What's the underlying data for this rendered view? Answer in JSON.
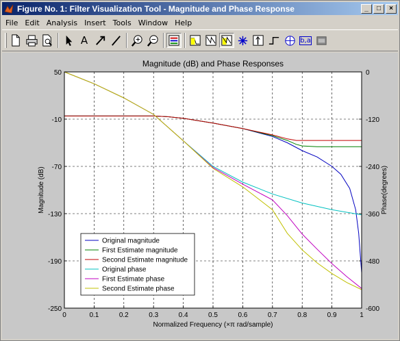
{
  "window": {
    "title": "Figure No. 1: Filter Visualization Tool - Magnitude and Phase Response",
    "minimize_glyph": "_",
    "maximize_glyph": "□",
    "close_glyph": "×"
  },
  "menu": [
    "File",
    "Edit",
    "Analysis",
    "Insert",
    "Tools",
    "Window",
    "Help"
  ],
  "toolbar": [
    {
      "name": "new-figure-icon"
    },
    {
      "name": "print-icon"
    },
    {
      "name": "print-preview-icon"
    },
    {
      "sep": true
    },
    {
      "name": "select-arrow-icon"
    },
    {
      "name": "insert-text-icon",
      "text": "A"
    },
    {
      "name": "insert-arrow-icon"
    },
    {
      "name": "insert-line-icon"
    },
    {
      "sep": true
    },
    {
      "name": "zoom-in-icon"
    },
    {
      "name": "zoom-out-icon"
    },
    {
      "sep": true
    },
    {
      "name": "filter-specs-icon",
      "pressed": true
    },
    {
      "sep": true
    },
    {
      "name": "magnitude-response-icon"
    },
    {
      "name": "phase-response-icon"
    },
    {
      "name": "magnitude-phase-icon",
      "pressed": true
    },
    {
      "name": "group-delay-icon"
    },
    {
      "name": "impulse-response-icon"
    },
    {
      "name": "step-response-icon"
    },
    {
      "name": "pole-zero-icon"
    },
    {
      "name": "filter-coefficients-icon",
      "text": "b,a"
    },
    {
      "name": "filter-info-icon"
    }
  ],
  "chart_data": {
    "type": "line",
    "title": "Magnitude (dB) and Phase Responses",
    "xlabel": "Normalized Frequency  (×π rad/sample)",
    "ylabel": "Magnitude (dB)",
    "y2label": "Phase(degrees)",
    "xlim": [
      0,
      1
    ],
    "ylim": [
      -250,
      50
    ],
    "y2lim": [
      -600,
      0
    ],
    "xticks": [
      "0",
      "0.1",
      "0.2",
      "0.3",
      "0.4",
      "0.5",
      "0.6",
      "0.7",
      "0.8",
      "0.9",
      "1"
    ],
    "yticks": [
      "50",
      "-10",
      "-70",
      "-130",
      "-190",
      "-250"
    ],
    "y2ticks": [
      "0",
      "-120",
      "-240",
      "-360",
      "-480",
      "-600"
    ],
    "grid": true,
    "legend_position": "bottom-left",
    "series": [
      {
        "name": "Original magnitude",
        "axis": "left",
        "color": "#0000c0",
        "x": [
          0,
          0.05,
          0.1,
          0.2,
          0.3,
          0.35,
          0.4,
          0.5,
          0.6,
          0.7,
          0.75,
          0.8,
          0.85,
          0.9,
          0.93,
          0.96,
          0.98,
          0.99,
          0.995,
          1.0
        ],
        "y": [
          -6,
          -6,
          -6,
          -6,
          -6,
          -7,
          -9,
          -15,
          -22,
          -32,
          -40,
          -50,
          -58,
          -70,
          -80,
          -98,
          -125,
          -155,
          -180,
          -205
        ]
      },
      {
        "name": "First Estimate magnitude",
        "axis": "left",
        "color": "#008000",
        "x": [
          0,
          0.05,
          0.1,
          0.2,
          0.3,
          0.35,
          0.4,
          0.5,
          0.6,
          0.7,
          0.75,
          0.78,
          0.8,
          0.85,
          0.9,
          0.95,
          1.0
        ],
        "y": [
          -6,
          -6,
          -6,
          -6,
          -6,
          -7,
          -9,
          -15,
          -22,
          -31,
          -37,
          -42,
          -44,
          -45,
          -45,
          -45,
          -45
        ]
      },
      {
        "name": "Second Estimate magnitude",
        "axis": "left",
        "color": "#c00000",
        "x": [
          0,
          0.05,
          0.1,
          0.2,
          0.3,
          0.35,
          0.4,
          0.5,
          0.6,
          0.7,
          0.75,
          0.78,
          0.8,
          0.85,
          0.9,
          0.95,
          1.0
        ],
        "y": [
          -6,
          -6,
          -6,
          -6,
          -6,
          -7,
          -9,
          -15,
          -22,
          -30,
          -35,
          -37,
          -37,
          -37,
          -37,
          -37,
          -37
        ]
      },
      {
        "name": "Original phase",
        "axis": "right",
        "color": "#00c0c0",
        "x": [
          0,
          0.1,
          0.2,
          0.3,
          0.4,
          0.5,
          0.6,
          0.7,
          0.8,
          0.9,
          1.0
        ],
        "y": [
          0,
          -30,
          -66,
          -108,
          -175,
          -240,
          -280,
          -310,
          -333,
          -350,
          -363
        ]
      },
      {
        "name": "First Estimate phase",
        "axis": "right",
        "color": "#c000c0",
        "x": [
          0,
          0.1,
          0.2,
          0.3,
          0.4,
          0.5,
          0.6,
          0.7,
          0.75,
          0.8,
          0.85,
          0.9,
          0.95,
          1.0
        ],
        "y": [
          0,
          -30,
          -66,
          -108,
          -175,
          -243,
          -285,
          -325,
          -365,
          -412,
          -450,
          -487,
          -520,
          -550
        ]
      },
      {
        "name": "Second Estimate phase",
        "axis": "right",
        "color": "#c0c000",
        "x": [
          0,
          0.1,
          0.2,
          0.3,
          0.4,
          0.5,
          0.6,
          0.7,
          0.75,
          0.8,
          0.85,
          0.9,
          0.95,
          1.0
        ],
        "y": [
          0,
          -30,
          -66,
          -108,
          -175,
          -245,
          -292,
          -350,
          -410,
          -452,
          -485,
          -512,
          -535,
          -553
        ]
      }
    ]
  }
}
